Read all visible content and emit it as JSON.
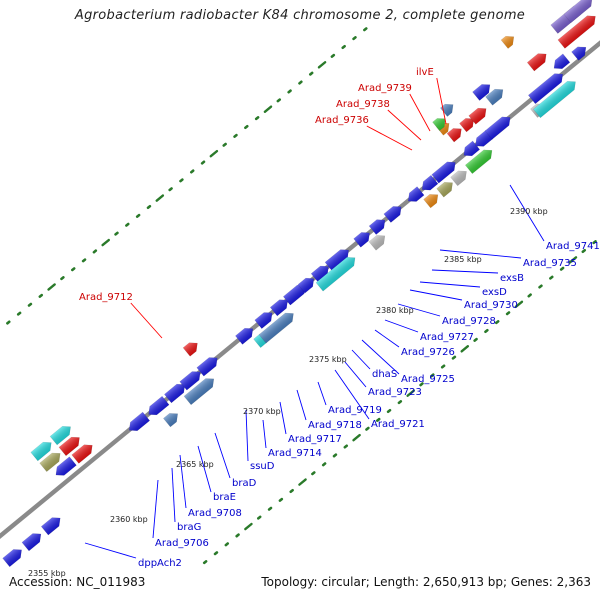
{
  "title": "Agrobacterium radiobacter K84 chromosome 2, complete genome",
  "footer": {
    "accession": "Accession: NC_011983",
    "topology": "Topology: circular; Length: 2,650,913 bp; Genes: 2,363"
  },
  "colors": {
    "cds_blue": "#1a1ae6",
    "rna_red": "#ee1111",
    "backbone": "#8c8c8c",
    "steelblue": "#4a7fc0",
    "cyan": "#22dde0",
    "green": "#33cc33",
    "orange": "#f08a10",
    "purple": "#7a60d0",
    "olive": "#a8a85a",
    "gray": "#bdbdbd",
    "tick_green": "#2a7a2a",
    "label_blue": "#0000cc",
    "label_red": "#cc0000"
  },
  "kbp_ticks": [
    "2355 kbp",
    "2360 kbp",
    "2365 kbp",
    "2370 kbp",
    "2375 kbp",
    "2380 kbp",
    "2385 kbp",
    "2390 kbp"
  ],
  "gene_labels_blue": [
    "dppAch2",
    "Arad_9706",
    "braG",
    "Arad_9708",
    "braE",
    "braD",
    "ssuD",
    "Arad_9714",
    "Arad_9717",
    "Arad_9718",
    "Arad_9719",
    "Arad_9721",
    "Arad_9723",
    "dhaS",
    "Arad_9725",
    "Arad_9726",
    "Arad_9727",
    "Arad_9728",
    "Arad_9730",
    "exsD",
    "exsB",
    "Arad_9735",
    "Arad_9741"
  ],
  "gene_labels_red": [
    "Arad_9712",
    "Arad_9736",
    "Arad_9738",
    "Arad_9739",
    "ilvE"
  ]
}
